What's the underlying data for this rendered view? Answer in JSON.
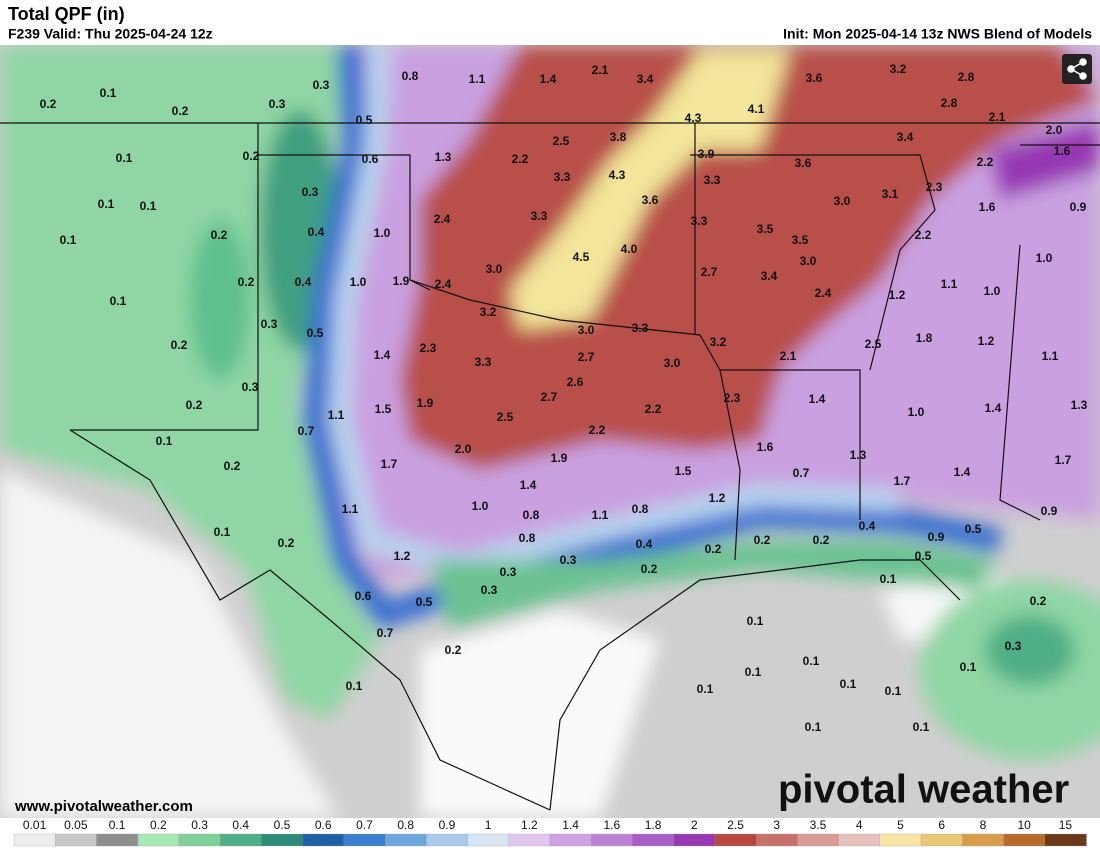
{
  "header": {
    "title": "Total QPF (in)",
    "valid": "F239 Valid: Thu 2025-04-24 12z",
    "init": "Init: Mon 2025-04-14 13z NWS Blend of Models"
  },
  "map": {
    "labels": [
      "0.8",
      "1.1",
      "1.4",
      "2.1",
      "3.4",
      "3.6",
      "3.2",
      "2.8",
      "0.3",
      "0.2",
      "0.1",
      "0.2",
      "0.3",
      "0.5",
      "4.3",
      "4.1",
      "2.8",
      "2.1",
      "2.0",
      "3.4",
      "0.1",
      "0.2",
      "0.6",
      "1.3",
      "2.2",
      "2.5",
      "3.8",
      "3.9",
      "3.6",
      "2.2",
      "1.6",
      "4.3",
      "3.3",
      "3.3",
      "0.3",
      "3.1",
      "2.3",
      "3.0",
      "3.6",
      "0.1",
      "0.1",
      "1.6",
      "0.9",
      "0.1",
      "0.2",
      "0.4",
      "1.0",
      "2.4",
      "3.3",
      "3.3",
      "3.5",
      "3.5",
      "2.2",
      "1.0",
      "4.0",
      "4.5",
      "3.0",
      "2.7",
      "3.0",
      "3.4",
      "0.2",
      "0.4",
      "1.0",
      "1.9",
      "2.4",
      "1.1",
      "1.0",
      "2.4",
      "1.2",
      "0.1",
      "3.2",
      "0.3",
      "0.5",
      "3.0",
      "3.3",
      "3.2",
      "1.8",
      "1.2",
      "2.5",
      "0.2",
      "1.4",
      "2.3",
      "3.3",
      "2.7",
      "1.1",
      "2.1",
      "3.0",
      "0.3",
      "2.6",
      "1.9",
      "1.5",
      "1.1",
      "2.7",
      "2.3",
      "2.2",
      "1.4",
      "1.0",
      "1.4",
      "1.3",
      "0.2",
      "2.5",
      "0.7",
      "2.2",
      "0.1",
      "2.0",
      "1.6",
      "1.3",
      "1.7",
      "0.2",
      "1.7",
      "1.9",
      "1.5",
      "1.7",
      "1.4",
      "0.7",
      "1.4",
      "1.2",
      "1.1",
      "1.0",
      "0.8",
      "1.1",
      "0.8",
      "0.9",
      "0.4",
      "0.8",
      "0.9",
      "0.5",
      "0.1",
      "0.2",
      "0.4",
      "0.2",
      "0.2",
      "0.2",
      "0.5",
      "1.2",
      "0.3",
      "0.3",
      "0.2",
      "0.1",
      "0.3",
      "0.6",
      "0.5",
      "0.2",
      "0.7",
      "0.1",
      "0.2",
      "0.3",
      "0.1",
      "0.1",
      "0.1",
      "0.1",
      "0.1",
      "0.1",
      "0.1",
      "0.1",
      "0.1"
    ]
  },
  "colorbar": {
    "labels": [
      "0.01",
      "0.05",
      "0.1",
      "0.2",
      "0.3",
      "0.4",
      "0.5",
      "0.6",
      "0.7",
      "0.8",
      "0.9",
      "1",
      "1.2",
      "1.4",
      "1.6",
      "1.8",
      "2",
      "2.5",
      "3",
      "3.5",
      "4",
      "5",
      "6",
      "8",
      "10",
      "15"
    ],
    "colors": [
      "#ececec",
      "#c8c8c8",
      "#8f8f8f",
      "#a6e8b4",
      "#7fcf98",
      "#4fae86",
      "#2f8a78",
      "#1f5fa8",
      "#3a7fd0",
      "#6fa6e0",
      "#a9cbea",
      "#d6e6f2",
      "#e2c6ee",
      "#cfa3e3",
      "#bd82d6",
      "#a85ec6",
      "#9637b3",
      "#b8483f",
      "#c8706a",
      "#d99a94",
      "#e8c2bc",
      "#f5e6a3",
      "#e8c878",
      "#d99c4c",
      "#b9692c",
      "#6b3a1a"
    ]
  },
  "footer": {
    "website": "www.pivotalweather.com",
    "logo": "pivotal weather"
  }
}
